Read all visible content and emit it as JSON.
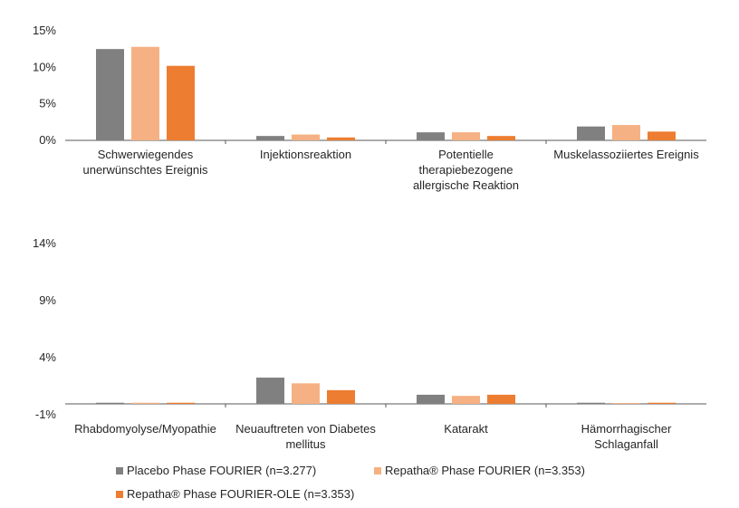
{
  "colors": {
    "placebo": "#808080",
    "repatha_fourier": "#f5b183",
    "repatha_ole": "#ed7d31",
    "axis": "#595959"
  },
  "chart_data": [
    {
      "type": "bar",
      "categories": [
        [
          "Schwerwiegendes",
          "unerwünschtes Ereignis"
        ],
        [
          "Injektionsreaktion"
        ],
        [
          "Potentielle",
          "therapiebezogene",
          "allergische Reaktion"
        ],
        [
          "Muskelassoziiertes Ereignis"
        ]
      ],
      "series": [
        {
          "name": "Placebo Phase FOURIER (n=3.277)",
          "values": [
            12.5,
            0.6,
            1.1,
            1.9
          ]
        },
        {
          "name": "Repatha® Phase FOURIER (n=3.353)",
          "values": [
            12.8,
            0.8,
            1.1,
            2.1
          ]
        },
        {
          "name": "Repatha® Phase FOURIER-OLE (n=3.353)",
          "values": [
            10.2,
            0.4,
            0.6,
            1.2
          ]
        }
      ],
      "yticks": [
        "0%",
        "5%",
        "10%",
        "15%"
      ],
      "ylim": [
        0,
        15
      ],
      "grid": false
    },
    {
      "type": "bar",
      "categories": [
        [
          "Rhabdomyolyse/Myopathie"
        ],
        [
          "Neuauftreten von Diabetes",
          "mellitus"
        ],
        [
          "Katarakt"
        ],
        [
          "Hämorrhagischer",
          "Schlaganfall"
        ]
      ],
      "series": [
        {
          "name": "Placebo Phase FOURIER (n=3.277)",
          "values": [
            0.1,
            2.3,
            0.8,
            0.1
          ]
        },
        {
          "name": "Repatha® Phase FOURIER (n=3.353)",
          "values": [
            0.1,
            1.8,
            0.7,
            0.0
          ]
        },
        {
          "name": "Repatha® Phase FOURIER-OLE (n=3.353)",
          "values": [
            0.1,
            1.2,
            0.8,
            0.1
          ]
        }
      ],
      "yticks": [
        "-1%",
        "4%",
        "9%",
        "14%"
      ],
      "ylim": [
        -1,
        14
      ],
      "grid": false
    }
  ],
  "legend": {
    "items": [
      {
        "label": "Placebo Phase FOURIER (n=3.277)",
        "color": "#808080"
      },
      {
        "label": "Repatha® Phase FOURIER (n=3.353)",
        "color": "#f5b183"
      },
      {
        "label": "Repatha® Phase FOURIER-OLE (n=3.353)",
        "color": "#ed7d31"
      }
    ]
  }
}
